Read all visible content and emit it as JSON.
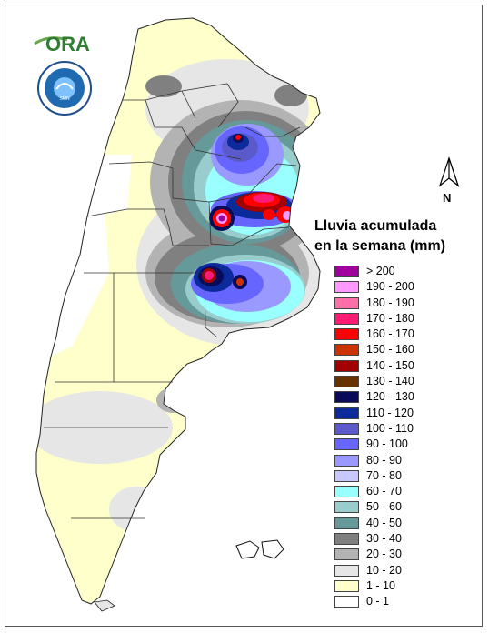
{
  "logos": {
    "ora_text": "ORA",
    "smn_ring_text": "SERVICIO METEOROLÓGICO NACIONAL · ARGENTINA",
    "smn_center_text": "SMN"
  },
  "north_arrow": {
    "label": "N"
  },
  "legend": {
    "title_line1": "Lluvia acumulada",
    "title_line2": "en la semana (mm)",
    "items": [
      {
        "label": "> 200",
        "color": "#a0009b"
      },
      {
        "label": "190 - 200",
        "color": "#ff99ff"
      },
      {
        "label": "180 - 190",
        "color": "#ff6fa7"
      },
      {
        "label": "170 - 180",
        "color": "#ff1a75"
      },
      {
        "label": "160 - 170",
        "color": "#ff0000"
      },
      {
        "label": "150 - 160",
        "color": "#cc3300"
      },
      {
        "label": "140 - 150",
        "color": "#a30000"
      },
      {
        "label": "130 - 140",
        "color": "#663300"
      },
      {
        "label": "120 - 130",
        "color": "#0a0a5a"
      },
      {
        "label": "110 - 120",
        "color": "#0b2a9c"
      },
      {
        "label": "100 - 110",
        "color": "#5a5acb"
      },
      {
        "label": "90 - 100",
        "color": "#6666ff"
      },
      {
        "label": "80 - 90",
        "color": "#9999ff"
      },
      {
        "label": "70 - 80",
        "color": "#c8c8ff"
      },
      {
        "label": "60 - 70",
        "color": "#99ffff"
      },
      {
        "label": "50 - 60",
        "color": "#99cccc"
      },
      {
        "label": "40 - 50",
        "color": "#669999"
      },
      {
        "label": "30 - 40",
        "color": "#808080"
      },
      {
        "label": "20 - 30",
        "color": "#b3b3b3"
      },
      {
        "label": "10 - 20",
        "color": "#e6e6e6"
      },
      {
        "label": "1 - 10",
        "color": "#ffffcc"
      },
      {
        "label": "0 - 1",
        "color": "#ffffff"
      }
    ]
  }
}
